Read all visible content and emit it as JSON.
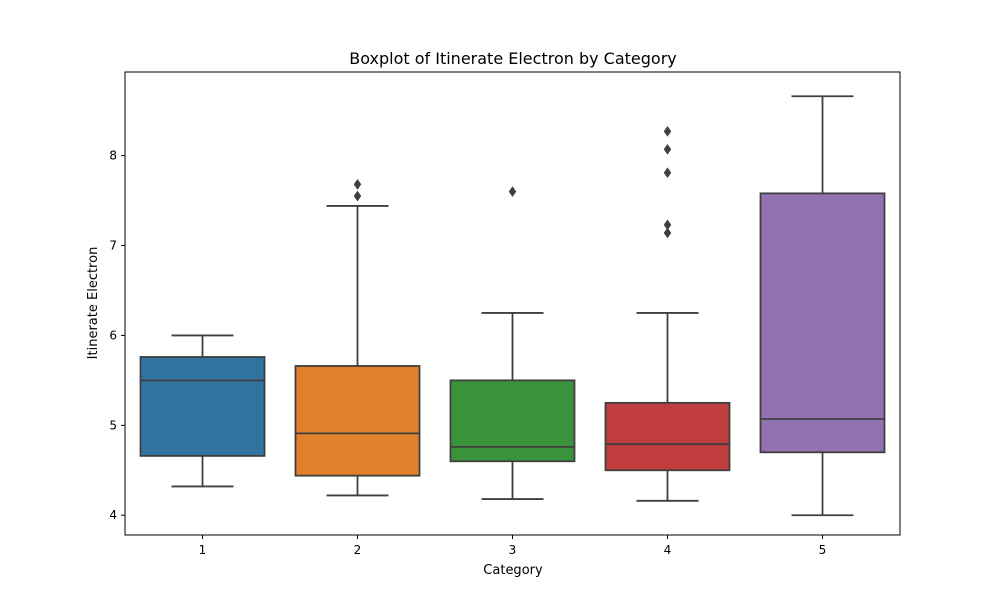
{
  "chart_data": {
    "type": "box",
    "title": "Boxplot of Itinerate Electron by Category",
    "xlabel": "Category",
    "ylabel": "Itinerate Electron",
    "categories": [
      "1",
      "2",
      "3",
      "4",
      "5"
    ],
    "ylim": [
      3.78,
      8.93
    ],
    "yticks": [
      4,
      5,
      6,
      7,
      8
    ],
    "grid": false,
    "boxes": [
      {
        "category": "1",
        "whisker_low": 4.32,
        "q1": 4.66,
        "median": 5.5,
        "q3": 5.76,
        "whisker_high": 6.0,
        "outliers": [],
        "color": "#3274a1"
      },
      {
        "category": "2",
        "whisker_low": 4.22,
        "q1": 4.44,
        "median": 4.91,
        "q3": 5.66,
        "whisker_high": 7.44,
        "outliers": [
          7.55,
          7.68
        ],
        "color": "#e1812c"
      },
      {
        "category": "3",
        "whisker_low": 4.18,
        "q1": 4.6,
        "median": 4.76,
        "q3": 5.5,
        "whisker_high": 6.25,
        "outliers": [
          7.6
        ],
        "color": "#3a923a"
      },
      {
        "category": "4",
        "whisker_low": 4.16,
        "q1": 4.5,
        "median": 4.79,
        "q3": 5.25,
        "whisker_high": 6.25,
        "outliers": [
          7.14,
          7.23,
          7.81,
          8.07,
          8.27
        ],
        "color": "#c03d3e"
      },
      {
        "category": "5",
        "whisker_low": 4.0,
        "q1": 4.7,
        "median": 5.07,
        "q3": 7.58,
        "whisker_high": 8.66,
        "outliers": [],
        "color": "#9372b2"
      }
    ]
  }
}
